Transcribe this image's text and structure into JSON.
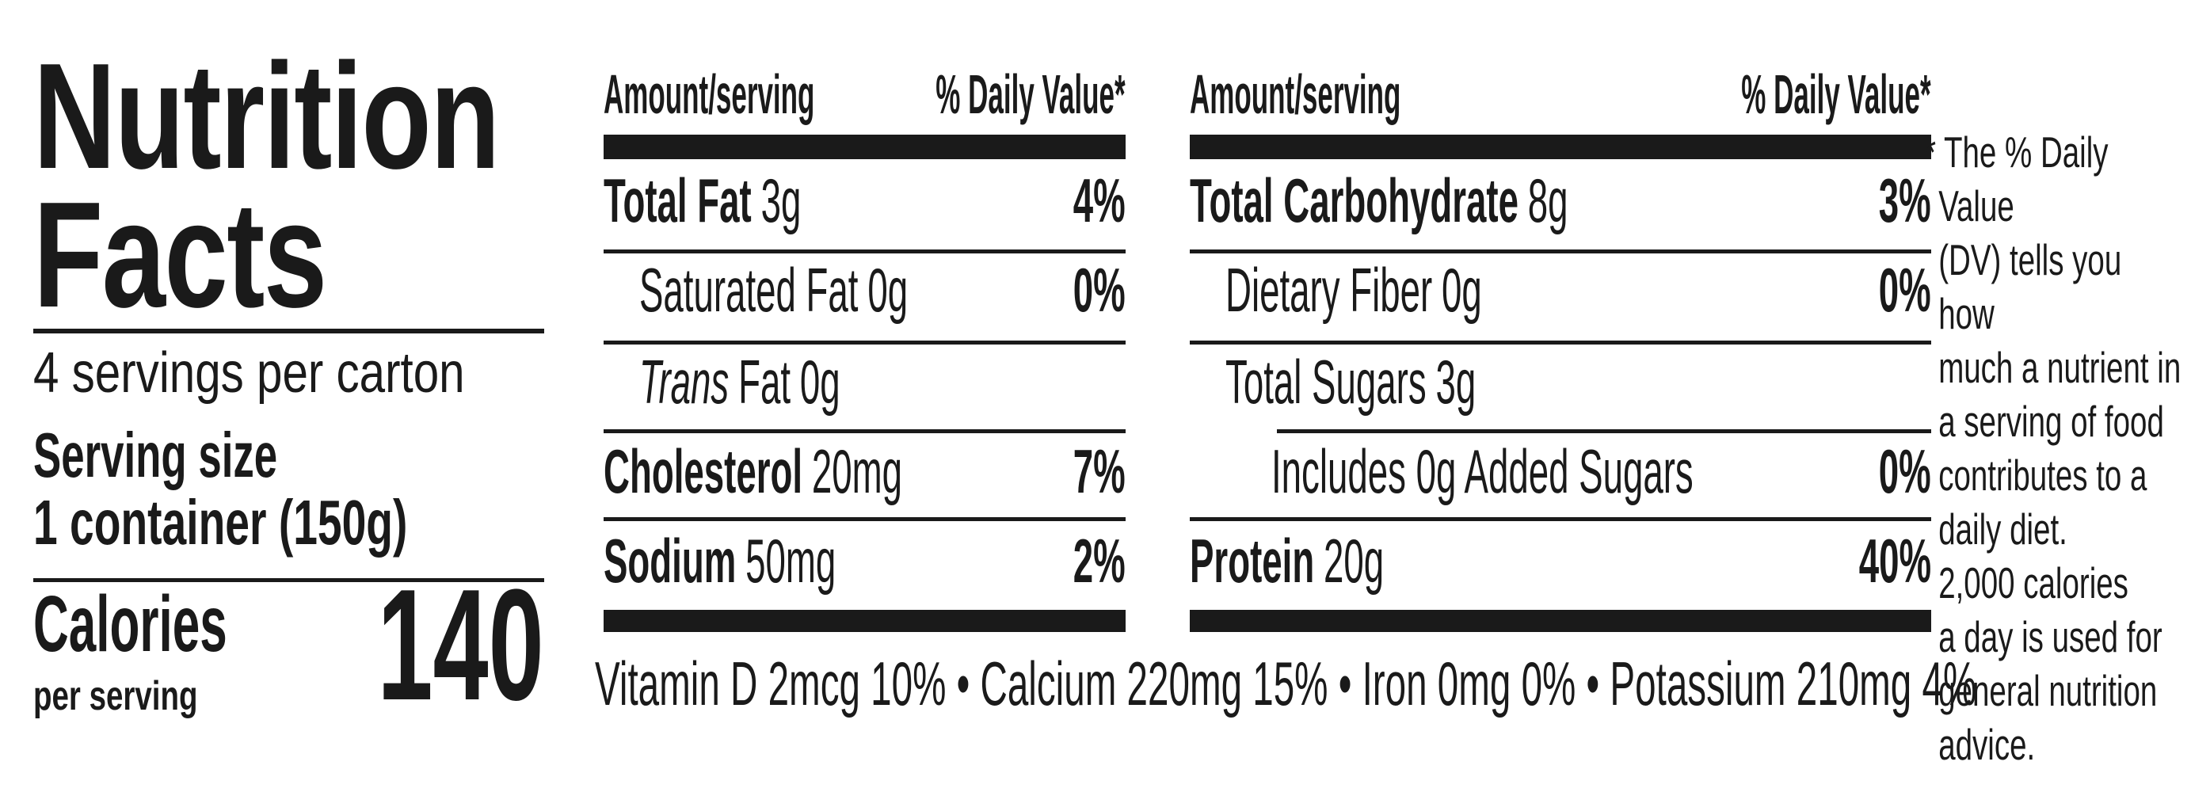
{
  "panel": {
    "title_line1": "Nutrition",
    "title_line2": "Facts",
    "servings_per_carton": "4 servings per carton",
    "serving_size_label": "Serving size",
    "serving_size_value": "1 container (150g)",
    "calories_label": "Calories",
    "calories_sublabel": "per serving",
    "calories_value": "140"
  },
  "col1": {
    "header_amount": "Amount/serving",
    "header_dv": "% Daily Value*",
    "rows": [
      {
        "name": "Total Fat",
        "amount": "3g",
        "dv": "4%"
      },
      {
        "name": "Saturated Fat",
        "amount": "0g",
        "dv": "0%"
      },
      {
        "name_italic": "Trans",
        "name_rest": "Fat",
        "amount": "0g",
        "dv": ""
      },
      {
        "name": "Cholesterol",
        "amount": "20mg",
        "dv": "7%"
      },
      {
        "name": "Sodium",
        "amount": "50mg",
        "dv": "2%"
      }
    ]
  },
  "col2": {
    "header_amount": "Amount/serving",
    "header_dv": "% Daily Value*",
    "rows": [
      {
        "name": "Total Carbohydrate",
        "amount": "8g",
        "dv": "3%"
      },
      {
        "name": "Dietary Fiber",
        "amount": "0g",
        "dv": "0%"
      },
      {
        "name": "Total Sugars",
        "amount": "3g",
        "dv": ""
      },
      {
        "name": "Includes 0g Added Sugars",
        "amount": "",
        "dv": "0%"
      },
      {
        "name": "Protein",
        "amount": "20g",
        "dv": "40%"
      }
    ]
  },
  "micronutrients": "Vitamin D 2mcg 10% • Calcium 220mg 15% • Iron 0mg 0% • Potassium 210mg 4%",
  "footnote": {
    "marker": "*",
    "lines": [
      "The % Daily Value",
      "(DV) tells you how",
      "much a nutrient in",
      "a serving of food",
      "contributes to a",
      "daily diet.",
      "2,000 calories",
      "a day is used for",
      "general nutrition",
      "advice."
    ]
  },
  "colors": {
    "ink": "#1a1a1a",
    "background": "#ffffff"
  }
}
